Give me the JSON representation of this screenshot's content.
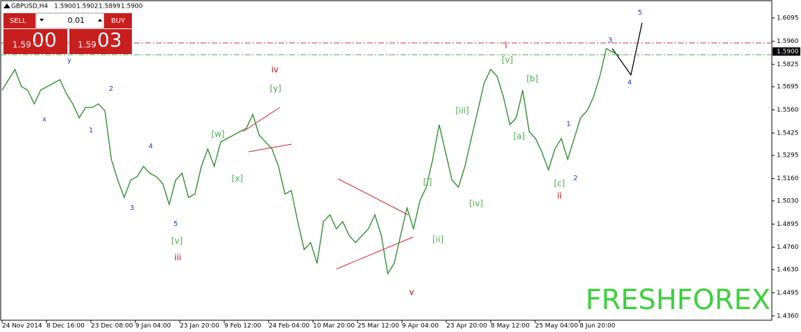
{
  "chart_data": {
    "type": "line",
    "title": "GBPUSD,H4",
    "quote": [
      "1.5900",
      "1.5902",
      "1.5899",
      "1.5900"
    ],
    "panel": {
      "sell": "SELL",
      "buy": "BUY",
      "lot": "0.01",
      "sell_big": "1.59",
      "sell_pips": "00",
      "buy_big": "1.59",
      "buy_pips": "03"
    },
    "watermark": "FRESHFOREX",
    "x_axis_labels": [
      "24 Nov 2014",
      "8 Dec 16:00",
      "23 Dec 08:00",
      "9 Jan 04:00",
      "23 Jan 20:00",
      "9 Feb 12:00",
      "24 Feb 04:00",
      "10 Mar 20:00",
      "25 Mar 12:00",
      "9 Apr 04:00",
      "23 Apr 20:00",
      "8 May 12:00",
      "25 May 04:00",
      "8 Jun 20:00"
    ],
    "ylim": [
      1.4331,
      1.6192
    ],
    "yticks": [
      1.6095,
      {
        "value": 1.596,
        "label": "1.5960"
      },
      1.5825,
      1.5695,
      {
        "value": 1.556,
        "label": "1.5560"
      },
      1.5425,
      1.5295,
      {
        "value": 1.516,
        "label": "1.5160"
      },
      {
        "value": 1.503,
        "label": "1.5030"
      },
      1.4895,
      {
        "value": 1.476,
        "label": "1.4760"
      },
      {
        "value": 1.463,
        "label": "1.4630"
      },
      1.4495,
      {
        "value": 1.436,
        "label": "1.4360"
      }
    ],
    "current_price": {
      "value": 1.59,
      "label": "1.5900"
    },
    "levels": [
      {
        "value": 1.595,
        "color": "#c0303a"
      },
      {
        "value": 1.5881,
        "color": "#3cb043"
      }
    ],
    "series": [
      {
        "name": "GBPUSD",
        "color": "#2f8f2f",
        "values": [
          1.5675,
          1.5736,
          1.5796,
          1.5696,
          1.5675,
          1.5595,
          1.5675,
          1.5696,
          1.5716,
          1.5736,
          1.5655,
          1.5595,
          1.5514,
          1.5574,
          1.5574,
          1.5595,
          1.5554,
          1.5272,
          1.5151,
          1.505,
          1.5151,
          1.5171,
          1.5231,
          1.5191,
          1.5171,
          1.513,
          1.5009,
          1.5151,
          1.5191,
          1.505,
          1.507,
          1.5231,
          1.5332,
          1.5231,
          1.5373,
          1.5393,
          1.5413,
          1.5433,
          1.5453,
          1.5534,
          1.5413,
          1.5373,
          1.5332,
          1.5231,
          1.507,
          1.509,
          1.4909,
          1.4747,
          1.4787,
          1.4666,
          1.4909,
          1.4949,
          1.4868,
          1.4909,
          1.4828,
          1.4787,
          1.4828,
          1.4868,
          1.4949,
          1.4828,
          1.4606,
          1.4666,
          1.4828,
          1.4989,
          1.4868,
          1.503,
          1.511,
          1.5272,
          1.5474,
          1.5312,
          1.5151,
          1.511,
          1.5231,
          1.5393,
          1.5554,
          1.5716,
          1.5796,
          1.5756,
          1.5635,
          1.5474,
          1.5514,
          1.5675,
          1.5433,
          1.5393,
          1.5312,
          1.5211,
          1.5332,
          1.5393,
          1.5272,
          1.5393,
          1.5514,
          1.5554,
          1.5635,
          1.5756,
          1.5917,
          1.5897,
          1.5877
        ]
      }
    ],
    "wave_labels": [
      {
        "text": "y",
        "color": "#1f3fbf"
      },
      {
        "text": "x",
        "color": "#1f3fbf"
      },
      {
        "text": "2",
        "color": "#1f3fbf"
      },
      {
        "text": "1",
        "color": "#1f3fbf"
      },
      {
        "text": "4",
        "color": "#1f3fbf"
      },
      {
        "text": "3",
        "color": "#1f3fbf"
      },
      {
        "text": "5",
        "color": "#1f3fbf"
      },
      {
        "text": "[v]",
        "color": "#4caf50"
      },
      {
        "text": "iii",
        "color": "#cc1010"
      },
      {
        "text": "iv",
        "color": "#cc1010"
      },
      {
        "text": "[y]",
        "color": "#4caf50"
      },
      {
        "text": "[w]",
        "color": "#4caf50"
      },
      {
        "text": "[x]",
        "color": "#4caf50"
      },
      {
        "text": "v",
        "color": "#cc1010"
      },
      {
        "text": "[i]",
        "color": "#4caf50"
      },
      {
        "text": "[ii]",
        "color": "#4caf50"
      },
      {
        "text": "[iii]",
        "color": "#4caf50"
      },
      {
        "text": "[iv]",
        "color": "#4caf50"
      },
      {
        "text": "i",
        "color": "#cc1010"
      },
      {
        "text": "[v]",
        "color": "#4caf50"
      },
      {
        "text": "[b]",
        "color": "#4caf50"
      },
      {
        "text": "[a]",
        "color": "#4caf50"
      },
      {
        "text": "[c]",
        "color": "#4caf50"
      },
      {
        "text": "ii",
        "color": "#cc1010"
      },
      {
        "text": "1",
        "color": "#1f3fbf"
      },
      {
        "text": "2",
        "color": "#1f3fbf"
      },
      {
        "text": "3",
        "color": "#1f3fbf"
      },
      {
        "text": "4",
        "color": "#1f3fbf"
      },
      {
        "text": "5",
        "color": "#1f3fbf"
      }
    ]
  }
}
